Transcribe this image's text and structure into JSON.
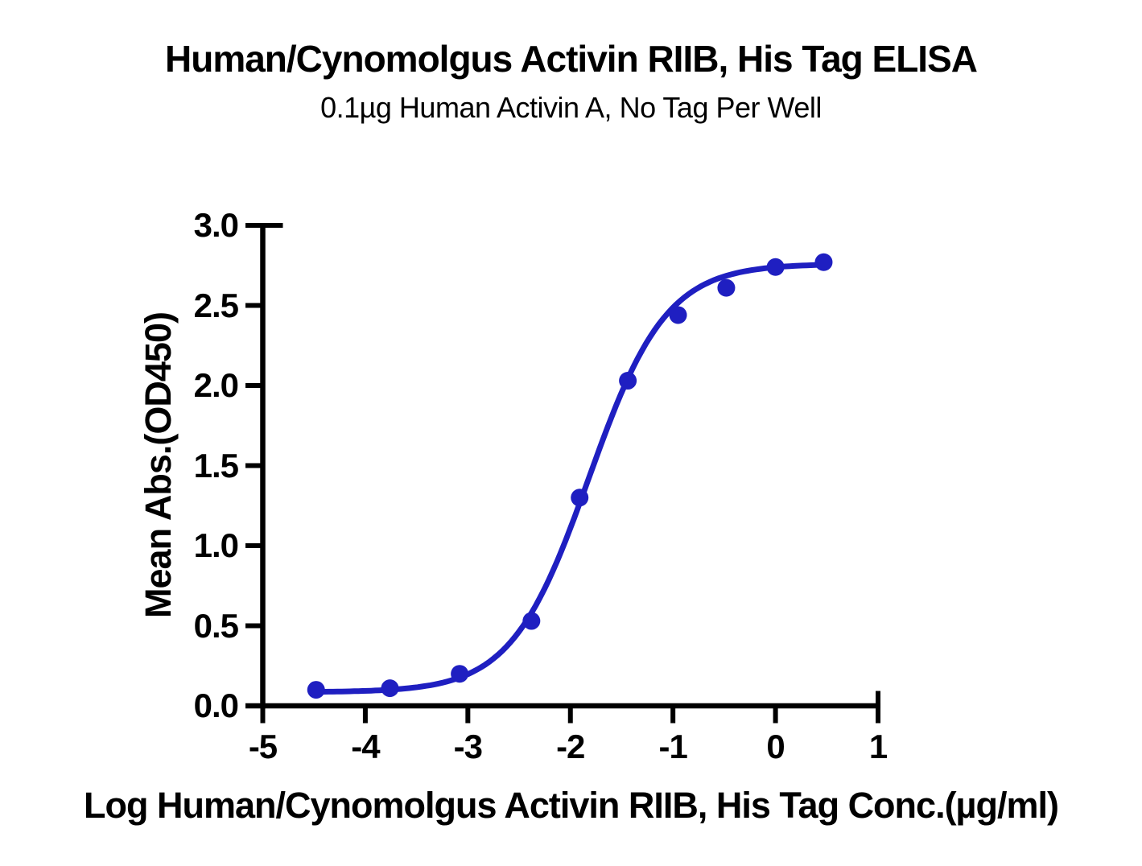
{
  "chart_data": {
    "type": "scatter",
    "title": "Human/Cynomolgus Activin RIIB, His Tag ELISA",
    "subtitle": "0.1µg Human Activin A, No Tag Per Well",
    "xlabel": "Log Human/Cynomolgus Activin RIIB, His Tag Conc.(µg/ml)",
    "ylabel": "Mean Abs.(OD450)",
    "x_tick_labels": [
      "-5",
      "-4",
      "-3",
      "-2",
      "-1",
      "0",
      "1"
    ],
    "y_tick_labels": [
      "0.0",
      "0.5",
      "1.0",
      "1.5",
      "2.0",
      "2.5",
      "3.0"
    ],
    "xlim": [
      -5,
      1.1
    ],
    "ylim": [
      0,
      3.0
    ],
    "grid": false,
    "legend_position": "none",
    "colors": {
      "curve": "#1f1fc1",
      "marker": "#1f1fc1",
      "axis": "#000000",
      "text": "#000000",
      "background": "#ffffff"
    },
    "points": [
      {
        "x": -4.48,
        "y": 0.1
      },
      {
        "x": -3.76,
        "y": 0.11
      },
      {
        "x": -3.08,
        "y": 0.2
      },
      {
        "x": -2.38,
        "y": 0.53
      },
      {
        "x": -1.91,
        "y": 1.3
      },
      {
        "x": -1.44,
        "y": 2.03
      },
      {
        "x": -0.95,
        "y": 2.44
      },
      {
        "x": -0.48,
        "y": 2.61
      },
      {
        "x": 0.0,
        "y": 2.74
      },
      {
        "x": 0.47,
        "y": 2.77
      }
    ],
    "fit_curve_4pl": {
      "bottom": 0.085,
      "top": 2.76,
      "logec50": -1.82,
      "hill": 1.15,
      "x_start": -4.48,
      "x_end": 0.47
    }
  }
}
